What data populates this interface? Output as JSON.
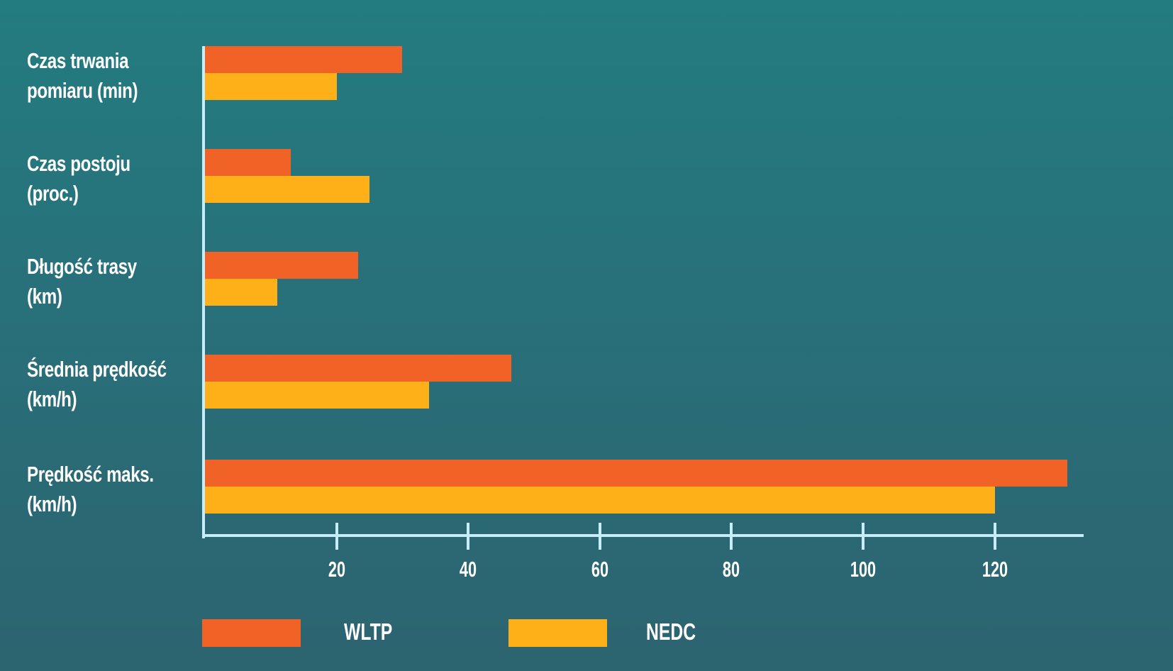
{
  "colors": {
    "background_top": "#237c80",
    "background_bottom": "#2c6470",
    "wltp": "#f06225",
    "nedc": "#fdb017",
    "axis": "#c9ecfb",
    "text": "#ffffff"
  },
  "chart_data": {
    "type": "bar",
    "orientation": "horizontal",
    "title": "",
    "xlabel": "",
    "ylabel": "",
    "categories": [
      "Czas trwania pomiaru (min)",
      "Czas postoju (proc.)",
      "Długość trasy (km)",
      "Średnia prędkość (km/h)",
      "Prędkość maks. (km/h)"
    ],
    "category_lines": [
      [
        "Czas trwania",
        "pomiaru (min)"
      ],
      [
        "Czas postoju",
        "(proc.)"
      ],
      [
        "Długość trasy",
        "(km)"
      ],
      [
        "Średnia prędkość",
        "(km/h)"
      ],
      [
        "Prędkość maks.",
        "(km/h)"
      ]
    ],
    "series": [
      {
        "name": "WLTP",
        "color": "#f06225",
        "values": [
          30,
          13,
          23.25,
          46.5,
          131
        ]
      },
      {
        "name": "NEDC",
        "color": "#fdb017",
        "values": [
          20,
          25,
          11,
          34,
          120
        ]
      }
    ],
    "xticks": [
      20,
      40,
      60,
      80,
      100,
      120
    ],
    "xlim": [
      0,
      133
    ],
    "grid": false,
    "legend_position": "bottom"
  },
  "legend": [
    {
      "label": "WLTP"
    },
    {
      "label": "NEDC"
    }
  ]
}
